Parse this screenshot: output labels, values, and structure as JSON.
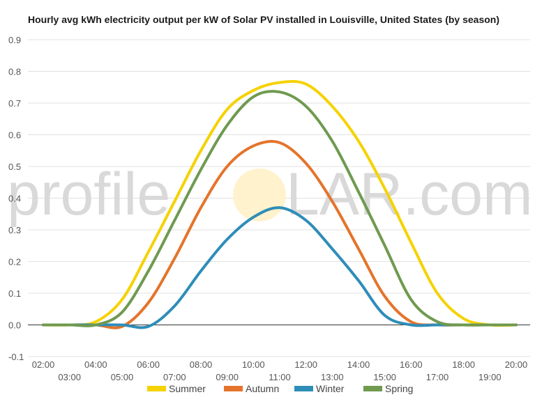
{
  "chart_data": {
    "type": "line",
    "title": "Hourly avg kWh electricity output per kW of Solar PV installed in Louisville, United States (by season)",
    "xlabel": "",
    "ylabel": "",
    "ylim": [
      -0.1,
      0.9
    ],
    "yticks": [
      "-0.1",
      "0.0",
      "0.1",
      "0.2",
      "0.3",
      "0.4",
      "0.5",
      "0.6",
      "0.7",
      "0.8",
      "0.9"
    ],
    "categories": [
      "02:00",
      "03:00",
      "04:00",
      "05:00",
      "06:00",
      "07:00",
      "08:00",
      "09:00",
      "10:00",
      "11:00",
      "12:00",
      "13:00",
      "14:00",
      "15:00",
      "16:00",
      "17:00",
      "18:00",
      "19:00",
      "20:00"
    ],
    "grid": true,
    "legend": "bottom",
    "series": [
      {
        "name": "Summer",
        "color": "#f5d200",
        "values": [
          0.0,
          0.0,
          0.01,
          0.08,
          0.23,
          0.39,
          0.55,
          0.68,
          0.74,
          0.765,
          0.76,
          0.69,
          0.58,
          0.43,
          0.26,
          0.1,
          0.02,
          0.0,
          0.0
        ]
      },
      {
        "name": "Autumn",
        "color": "#e4742b",
        "values": [
          0.0,
          0.0,
          0.0,
          -0.005,
          0.07,
          0.21,
          0.37,
          0.5,
          0.565,
          0.575,
          0.51,
          0.39,
          0.24,
          0.09,
          0.01,
          0.0,
          0.0,
          0.0,
          0.0
        ]
      },
      {
        "name": "Winter",
        "color": "#2e8db8",
        "values": [
          0.0,
          0.0,
          0.0,
          0.0,
          -0.005,
          0.06,
          0.17,
          0.27,
          0.34,
          0.37,
          0.33,
          0.24,
          0.14,
          0.03,
          0.0,
          0.0,
          0.0,
          0.0,
          0.0
        ]
      },
      {
        "name": "Spring",
        "color": "#6f9a4f",
        "values": [
          0.0,
          0.0,
          0.0,
          0.04,
          0.17,
          0.33,
          0.49,
          0.63,
          0.72,
          0.735,
          0.69,
          0.58,
          0.42,
          0.25,
          0.08,
          0.01,
          0.0,
          0.0,
          0.0
        ]
      }
    ]
  },
  "watermark": {
    "left": "profile",
    "right": "LAR.com",
    "sun_color": "#fff2cc"
  }
}
